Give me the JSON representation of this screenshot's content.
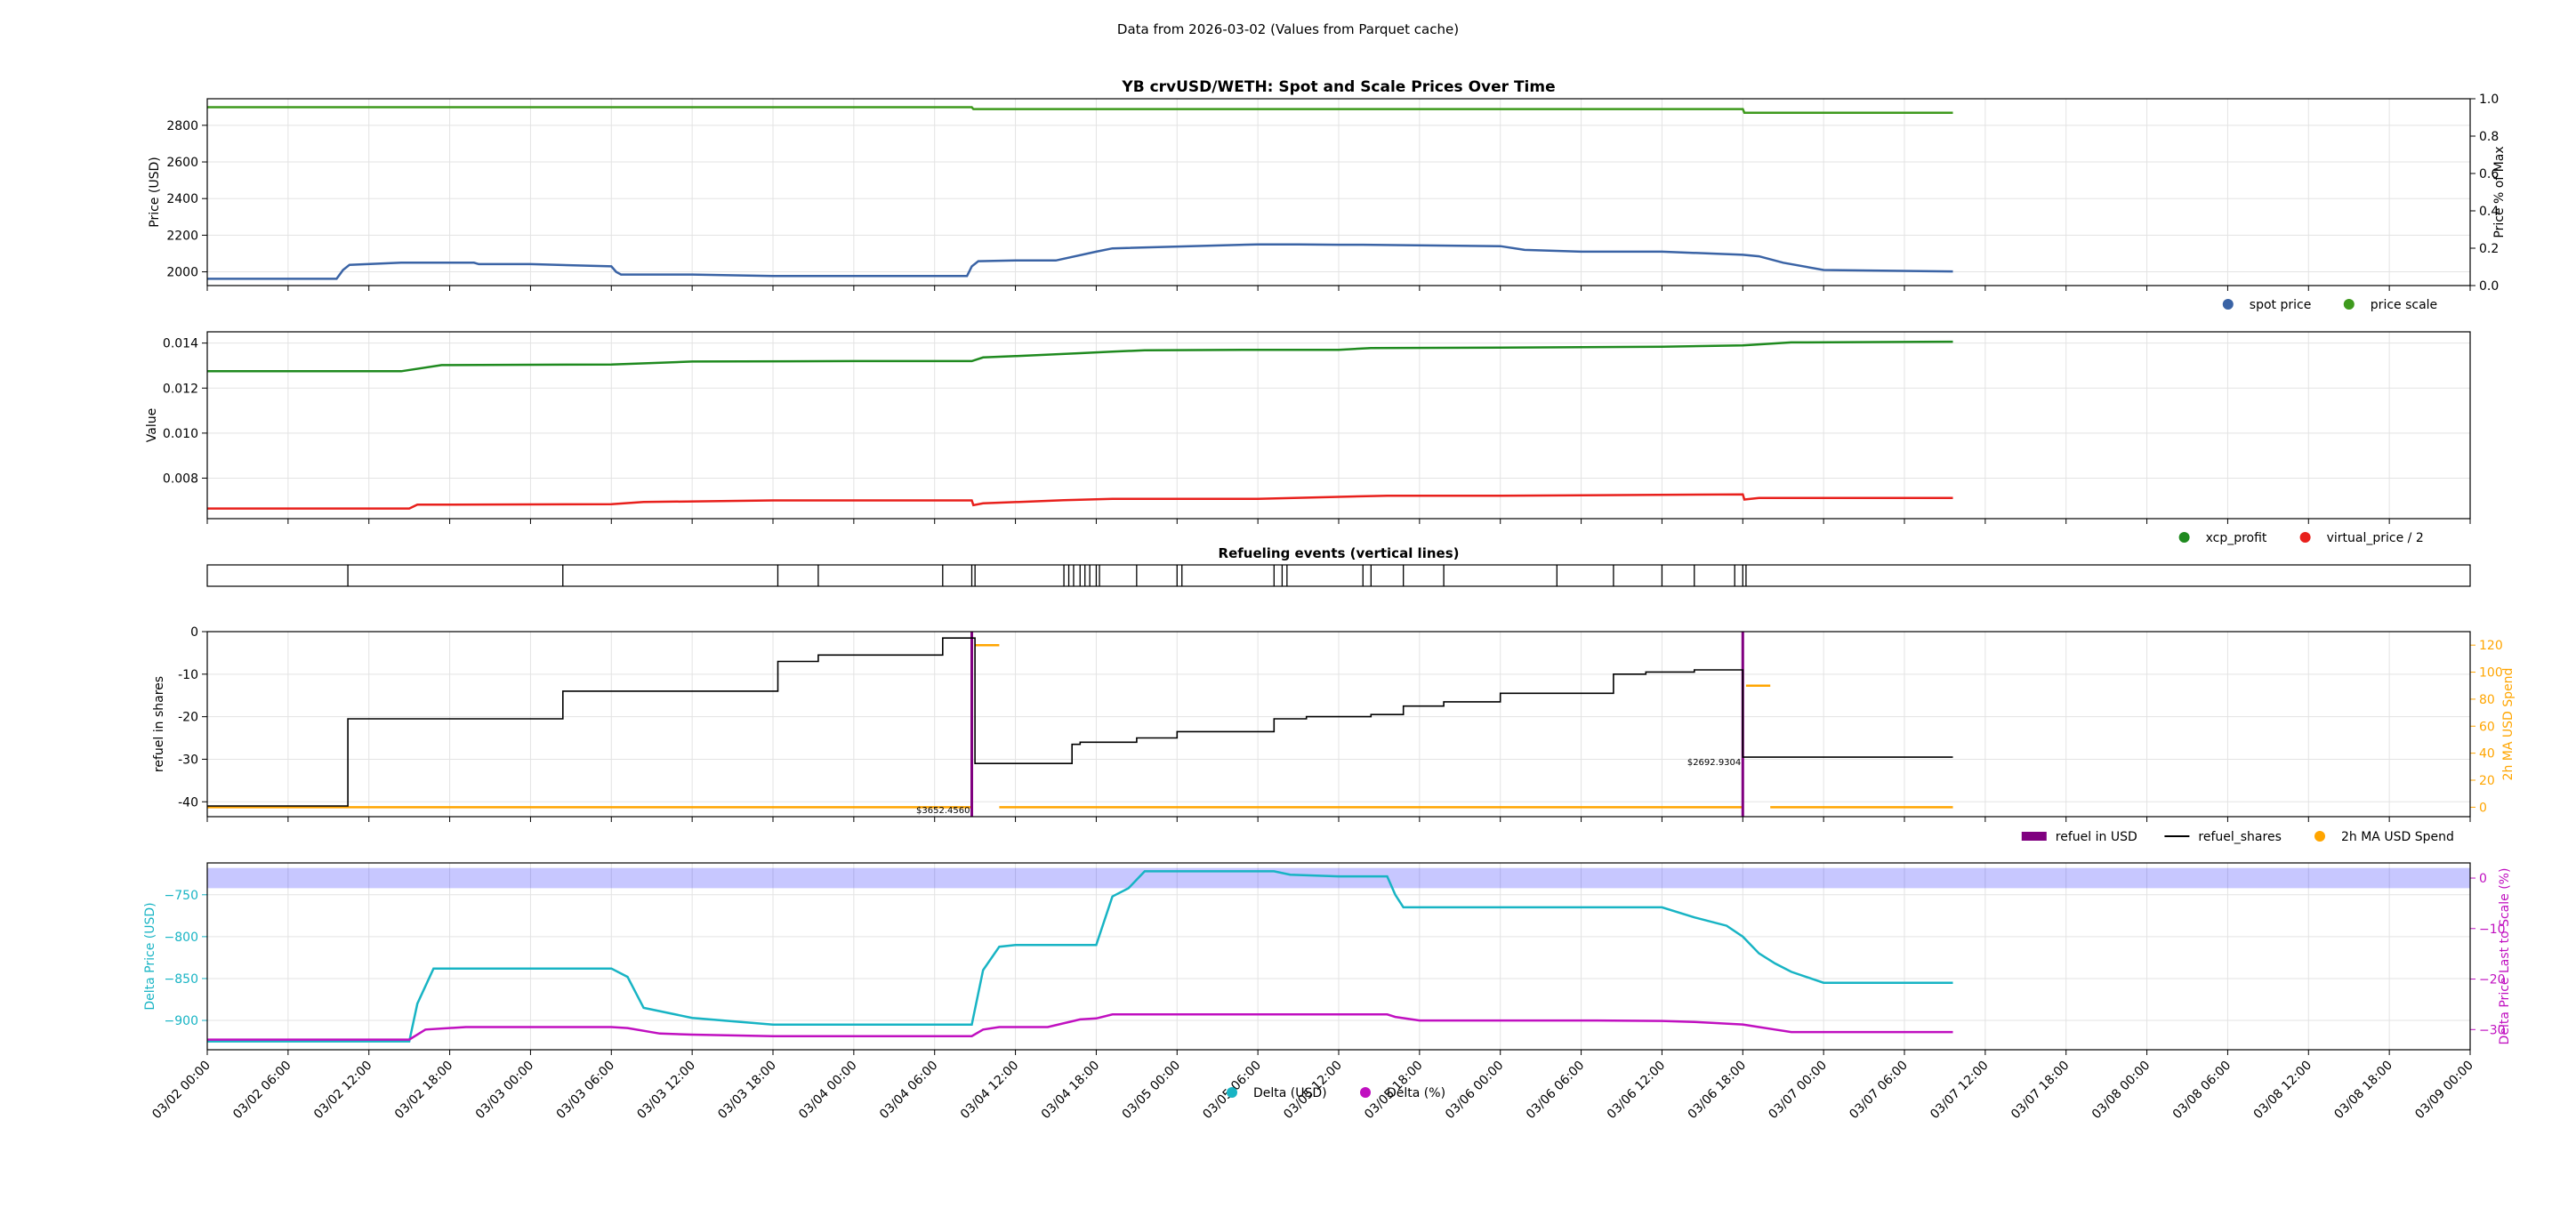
{
  "suptitle": "Data from 2026-03-02 (Values from Parquet cache)",
  "colors": {
    "spot": "#3a63a5",
    "scale": "#3e9a1d",
    "xcp": "#1f8a1f",
    "vp": "#e8201c",
    "refuel_usd": "#800080",
    "shares": "#000000",
    "ma": "#ffa500",
    "delta_usd": "#18b4c4",
    "delta_pct": "#c010c0",
    "band": "#0000ff",
    "grid": "#e3e3e3"
  },
  "chart_data": [
    {
      "id": "p1",
      "type": "line",
      "title": "YB crvUSD/WETH: Spot and Scale Prices Over Time",
      "xlabel": "",
      "ylabel": "Price (USD)",
      "ylabel_right": "Price % of Max",
      "ylim": [
        1925,
        2945
      ],
      "yticks": [
        2000,
        2200,
        2400,
        2600,
        2800
      ],
      "ylim_right": [
        0,
        1
      ],
      "yticks_right": [
        "0.0",
        "0.2",
        "0.4",
        "0.6",
        "0.8",
        "1.0"
      ],
      "legend": [
        "spot price",
        "price scale"
      ],
      "series": [
        {
          "name": "spot price",
          "axis": "left",
          "color": "spot",
          "x": [
            0,
            0.8,
            0.84,
            0.88,
            1.2,
            1.65,
            1.68,
            2.0,
            2.5,
            2.53,
            2.56,
            3.0,
            3.5,
            3.55,
            4.7,
            4.73,
            4.77,
            5.0,
            5.25,
            5.5,
            5.6,
            6.5,
            6.7,
            6.75,
            7.0,
            7.15,
            8.0,
            8.15,
            8.5,
            8.6,
            8.7,
            9.0,
            9.5,
            9.6,
            9.75,
            10.0,
            10.8
          ],
          "y": [
            1962,
            1962,
            2010,
            2038,
            2050,
            2050,
            2042,
            2042,
            2030,
            2000,
            1985,
            1985,
            1977,
            1977,
            1977,
            2030,
            2058,
            2062,
            2062,
            2110,
            2128,
            2150,
            2150,
            2150,
            2148,
            2148,
            2140,
            2120,
            2110,
            2110,
            2110,
            2110,
            2093,
            2085,
            2050,
            2010,
            2002
          ]
        },
        {
          "name": "price scale",
          "axis": "right",
          "color": "scale",
          "x": [
            0,
            4.73,
            4.74,
            9.5,
            9.51,
            10.8
          ],
          "y": [
            0.955,
            0.955,
            0.945,
            0.945,
            0.925,
            0.925
          ]
        }
      ]
    },
    {
      "id": "p2",
      "type": "line",
      "title": "",
      "xlabel": "",
      "ylabel": "Value",
      "ylim": [
        0.0062,
        0.0145
      ],
      "yticks": [
        "0.008",
        "0.010",
        "0.012",
        "0.014"
      ],
      "legend": [
        "xcp_profit",
        "virtual_price / 2"
      ],
      "series": [
        {
          "name": "xcp_profit",
          "color": "xcp",
          "x": [
            0,
            1.2,
            1.45,
            2.5,
            3.0,
            4.0,
            4.73,
            4.8,
            5.0,
            5.4,
            5.6,
            5.8,
            6.5,
            7.0,
            7.2,
            8.0,
            9.0,
            9.5,
            9.8,
            10.8
          ],
          "y": [
            0.01275,
            0.01275,
            0.01302,
            0.01305,
            0.01318,
            0.0132,
            0.0132,
            0.01336,
            0.01342,
            0.01355,
            0.01362,
            0.01368,
            0.0137,
            0.0137,
            0.01378,
            0.0138,
            0.01384,
            0.0139,
            0.01403,
            0.01406
          ]
        },
        {
          "name": "virtual_price / 2",
          "color": "vp",
          "x": [
            0,
            1.25,
            1.3,
            2.5,
            2.7,
            3.5,
            4.73,
            4.74,
            4.8,
            5.3,
            5.6,
            6.5,
            7.3,
            8.0,
            9.5,
            9.51,
            9.6,
            10.8
          ],
          "y": [
            0.00665,
            0.00665,
            0.00682,
            0.00684,
            0.00694,
            0.00701,
            0.00701,
            0.0068,
            0.00688,
            0.00702,
            0.00708,
            0.00708,
            0.00722,
            0.00722,
            0.00728,
            0.00705,
            0.00712,
            0.00712
          ]
        }
      ]
    },
    {
      "id": "p3",
      "type": "events",
      "title": "Refueling events (vertical lines)",
      "x": [
        0.87,
        2.2,
        3.53,
        3.78,
        4.55,
        4.73,
        4.75,
        5.3,
        5.33,
        5.36,
        5.4,
        5.43,
        5.46,
        5.5,
        5.52,
        5.75,
        6.0,
        6.03,
        6.6,
        6.65,
        6.68,
        7.15,
        7.2,
        7.4,
        7.65,
        8.35,
        8.7,
        9.0,
        9.2,
        9.45,
        9.5,
        9.52
      ]
    },
    {
      "id": "p4",
      "type": "line",
      "title": "",
      "xlabel": "",
      "ylabel": "refuel in shares",
      "ylabel_right": "2h MA USD Spend",
      "ylim": [
        -43.5,
        0
      ],
      "yticks": [
        -40,
        -30,
        -20,
        -10,
        0
      ],
      "ylim_right": [
        -7,
        130
      ],
      "yticks_right": [
        0,
        20,
        40,
        60,
        80,
        100,
        120
      ],
      "legend": [
        "refuel in USD",
        "refuel_shares",
        "2h MA USD Spend"
      ],
      "series": [
        {
          "name": "refuel_shares",
          "color": "shares",
          "x": [
            0,
            0.87,
            0.87,
            2.2,
            2.2,
            3.53,
            3.53,
            3.78,
            3.78,
            4.55,
            4.55,
            4.75,
            4.75,
            5.35,
            5.35,
            5.4,
            5.4,
            5.75,
            5.75,
            6.0,
            6.0,
            6.6,
            6.6,
            6.8,
            6.8,
            7.2,
            7.2,
            7.4,
            7.4,
            7.65,
            7.65,
            8.0,
            8.0,
            8.7,
            8.7,
            8.9,
            8.9,
            9.2,
            9.2,
            9.5,
            9.5,
            10.8
          ],
          "y": [
            -41,
            -41,
            -20.5,
            -20.5,
            -14,
            -14,
            -7,
            -7,
            -5.5,
            -5.5,
            -1.5,
            -1.5,
            -31,
            -31,
            -26.5,
            -26.5,
            -26,
            -26,
            -25,
            -25,
            -23.5,
            -23.5,
            -20.5,
            -20.5,
            -20,
            -20,
            -19.5,
            -19.5,
            -17.5,
            -17.5,
            -16.5,
            -16.5,
            -14.5,
            -14.5,
            -10,
            -10,
            -9.5,
            -9.5,
            -9,
            -9,
            -29.5,
            -29.5
          ]
        },
        {
          "name": "2h MA USD Spend",
          "axis": "right",
          "color": "ma",
          "segments": [
            [
              [
                0,
                0
              ],
              [
                4.73,
                0
              ]
            ],
            [
              [
                4.75,
                120
              ],
              [
                4.9,
                120
              ]
            ],
            [
              [
                4.9,
                0
              ],
              [
                9.5,
                0
              ]
            ],
            [
              [
                9.52,
                90
              ],
              [
                9.67,
                90
              ]
            ],
            [
              [
                9.67,
                0
              ],
              [
                10.8,
                0
              ]
            ]
          ]
        }
      ],
      "refuel_usd_events": [
        {
          "x": 4.73,
          "value": 3652.456,
          "label": "$3652.4560"
        },
        {
          "x": 9.5,
          "value": 2692.9304,
          "label": "$2692.9304"
        }
      ]
    },
    {
      "id": "p5",
      "type": "line",
      "title": "",
      "xlabel": "",
      "ylabel": "Delta Price (USD)",
      "ylabel_right": "Delta Price Last to Scale (%)",
      "ylim": [
        -935,
        -712
      ],
      "yticks": [
        -900,
        -850,
        -800,
        -750
      ],
      "yticks_labels": [
        "−900",
        "−850",
        "−800",
        "−750"
      ],
      "ylim_right": [
        -34,
        3
      ],
      "yticks_right": [
        -30,
        -20,
        -10,
        0
      ],
      "yticks_right_labels": [
        "−30",
        "−20",
        "−10",
        "0"
      ],
      "band_right": [
        -2,
        2
      ],
      "legend": [
        "Delta (USD)",
        "Delta (%)"
      ],
      "series": [
        {
          "name": "Delta (USD)",
          "color": "delta_usd",
          "x": [
            0,
            1.25,
            1.3,
            1.4,
            2.5,
            2.6,
            2.7,
            3.0,
            3.5,
            4.73,
            4.8,
            4.9,
            5.0,
            5.5,
            5.6,
            5.7,
            5.8,
            6.4,
            6.6,
            6.7,
            7.0,
            7.3,
            7.35,
            7.4,
            7.5,
            8.0,
            9.0,
            9.2,
            9.4,
            9.5,
            9.6,
            9.7,
            9.8,
            10.0,
            10.8
          ],
          "y": [
            -925,
            -925,
            -880,
            -838,
            -838,
            -848,
            -885,
            -897,
            -905,
            -905,
            -840,
            -812,
            -810,
            -810,
            -752,
            -742,
            -722,
            -722,
            -722,
            -726,
            -728,
            -728,
            -750,
            -765,
            -765,
            -765,
            -765,
            -777,
            -787,
            -800,
            -820,
            -832,
            -842,
            -855,
            -855
          ]
        },
        {
          "name": "Delta (%)",
          "axis": "right",
          "color": "delta_pct",
          "x": [
            0,
            1.25,
            1.35,
            1.6,
            2.5,
            2.6,
            2.8,
            3.0,
            3.5,
            4.73,
            4.8,
            4.9,
            5.0,
            5.2,
            5.4,
            5.5,
            5.6,
            6.0,
            6.5,
            7.0,
            7.3,
            7.35,
            7.5,
            8.0,
            8.6,
            9.0,
            9.2,
            9.5,
            9.6,
            9.7,
            9.8,
            10.0,
            10.8
          ],
          "y": [
            -32,
            -32,
            -30,
            -29.5,
            -29.5,
            -29.7,
            -30.8,
            -31,
            -31.3,
            -31.3,
            -30,
            -29.5,
            -29.5,
            -29.5,
            -28,
            -27.8,
            -27,
            -27,
            -27,
            -27,
            -27,
            -27.5,
            -28.2,
            -28.2,
            -28.2,
            -28.3,
            -28.5,
            -29,
            -29.5,
            -30,
            -30.5,
            -30.5,
            -30.5
          ]
        }
      ]
    }
  ],
  "x_axis": {
    "range": [
      0,
      14
    ],
    "ticks": [
      "03/02 00:00",
      "03/02 06:00",
      "03/02 12:00",
      "03/02 18:00",
      "03/03 00:00",
      "03/03 06:00",
      "03/03 12:00",
      "03/03 18:00",
      "03/04 00:00",
      "03/04 06:00",
      "03/04 12:00",
      "03/04 18:00",
      "03/05 00:00",
      "03/05 06:00",
      "03/05 12:00",
      "03/05 18:00",
      "03/06 00:00",
      "03/06 06:00",
      "03/06 12:00",
      "03/06 18:00",
      "03/07 00:00",
      "03/07 06:00",
      "03/07 12:00",
      "03/07 18:00",
      "03/08 00:00",
      "03/08 06:00",
      "03/08 12:00",
      "03/08 18:00",
      "03/09 00:00"
    ]
  }
}
